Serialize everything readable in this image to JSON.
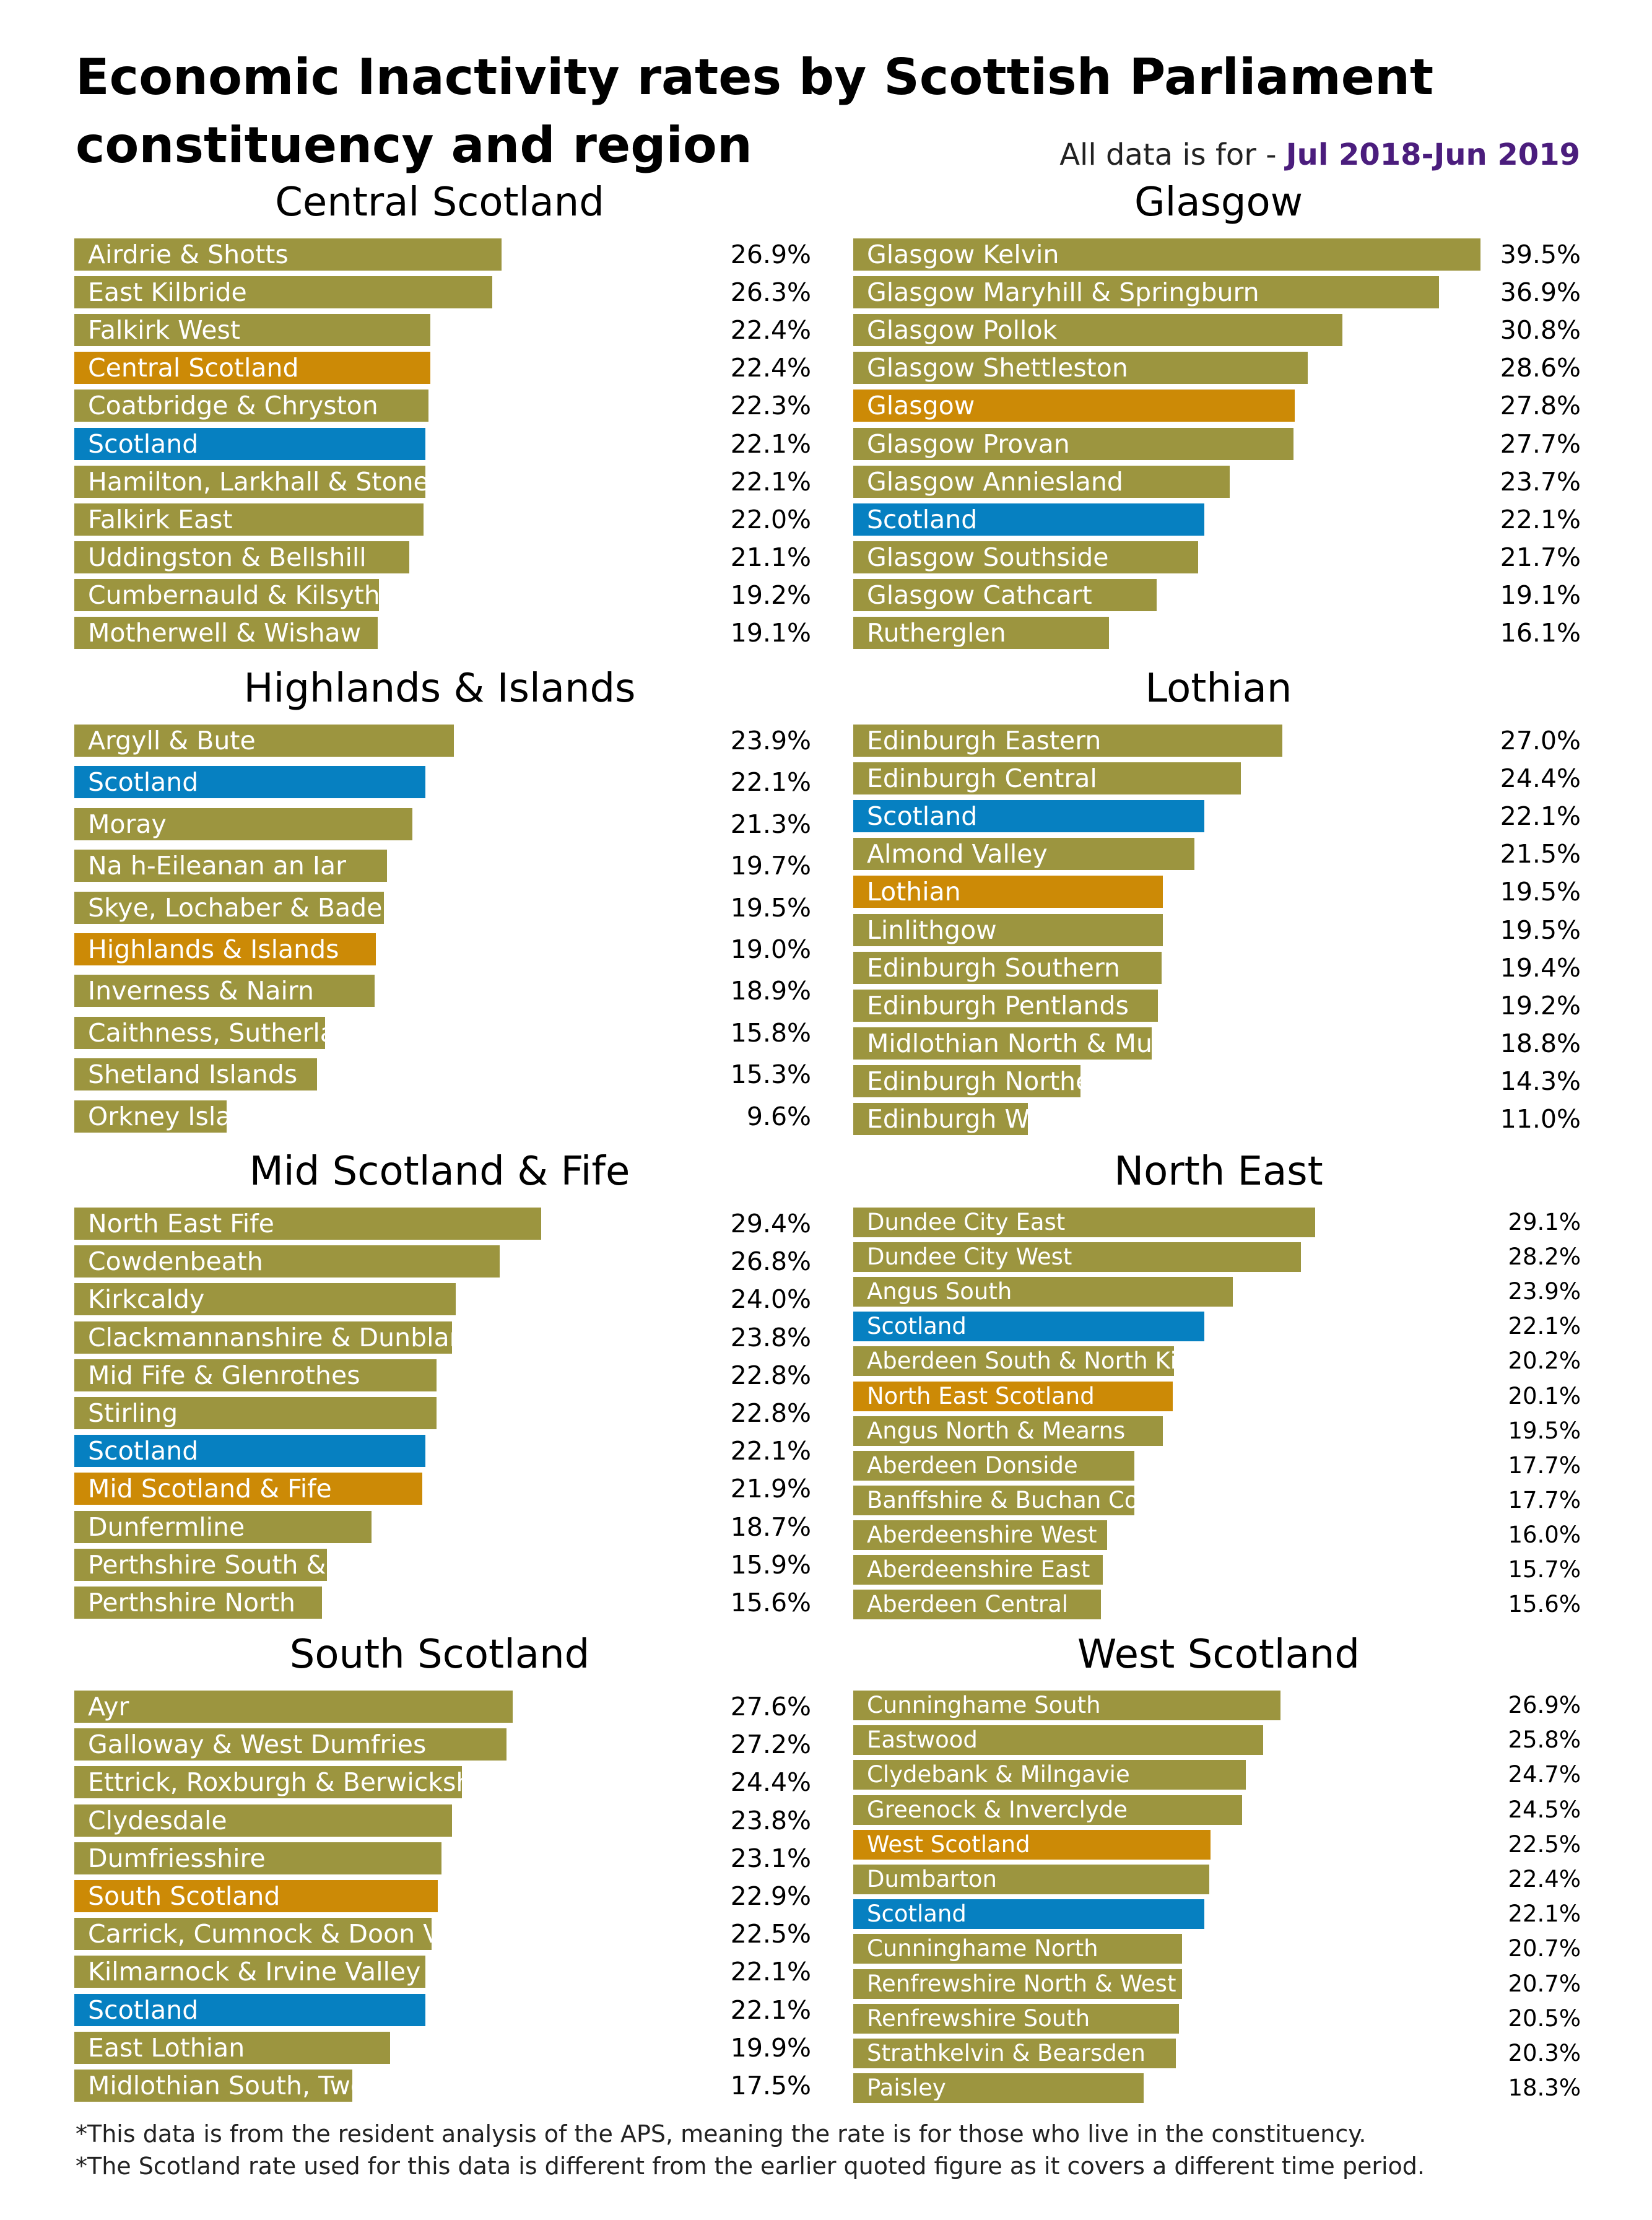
{
  "title": "Economic Inactivity rates by Scottish Parliament constituency and region",
  "period": {
    "prefix": "All data is for - ",
    "range": "Jul 2018-Jun 2019"
  },
  "colors": {
    "constituency": "#9c953f",
    "region": "#cc8a06",
    "scotland": "#0680c1",
    "label_text": "#ffffff"
  },
  "notes": [
    "*This data is from the resident analysis of the APS, meaning the rate is for those who live in the constituency.",
    "*The Scotland rate used for this data is different from the earlier quoted figure as it covers a different time period."
  ],
  "chart_data": [
    {
      "type": "bar",
      "orientation": "horizontal",
      "title": "Central Scotland",
      "unit": "%",
      "xlim": [
        0,
        40
      ],
      "categories": [
        "Airdrie & Shotts",
        "East Kilbride",
        "Falkirk West",
        "Central Scotland",
        "Coatbridge & Chryston",
        "Scotland",
        "Hamilton, Larkhall & Stonehouse",
        "Falkirk East",
        "Uddingston & Bellshill",
        "Cumbernauld & Kilsyth",
        "Motherwell & Wishaw"
      ],
      "values": [
        26.9,
        26.3,
        22.4,
        22.4,
        22.3,
        22.1,
        22.1,
        22.0,
        21.1,
        19.2,
        19.1
      ],
      "value_labels": [
        "26.9%",
        "26.3%",
        "22.4%",
        "22.4%",
        "22.3%",
        "22.1%",
        "22.1%",
        "22.0%",
        "21.1%",
        "19.2%",
        "19.1%"
      ],
      "kinds": [
        "constituency",
        "constituency",
        "constituency",
        "region",
        "constituency",
        "scotland",
        "constituency",
        "constituency",
        "constituency",
        "constituency",
        "constituency"
      ]
    },
    {
      "type": "bar",
      "orientation": "horizontal",
      "title": "Glasgow",
      "unit": "%",
      "xlim": [
        0,
        40
      ],
      "categories": [
        "Glasgow Kelvin",
        "Glasgow Maryhill & Springburn",
        "Glasgow Pollok",
        "Glasgow Shettleston",
        "Glasgow",
        "Glasgow Provan",
        "Glasgow Anniesland",
        "Scotland",
        "Glasgow Southside",
        "Glasgow Cathcart",
        "Rutherglen"
      ],
      "values": [
        39.5,
        36.9,
        30.8,
        28.6,
        27.8,
        27.7,
        23.7,
        22.1,
        21.7,
        19.1,
        16.1
      ],
      "value_labels": [
        "39.5%",
        "36.9%",
        "30.8%",
        "28.6%",
        "27.8%",
        "27.7%",
        "23.7%",
        "22.1%",
        "21.7%",
        "19.1%",
        "16.1%"
      ],
      "kinds": [
        "constituency",
        "constituency",
        "constituency",
        "constituency",
        "region",
        "constituency",
        "constituency",
        "scotland",
        "constituency",
        "constituency",
        "constituency"
      ]
    },
    {
      "type": "bar",
      "orientation": "horizontal",
      "title": "Highlands & Islands",
      "unit": "%",
      "xlim": [
        0,
        40
      ],
      "categories": [
        "Argyll & Bute",
        "Scotland",
        "Moray",
        "Na h-Eileanan an Iar",
        "Skye, Lochaber & Badenoch",
        "Highlands & Islands",
        "Inverness & Nairn",
        "Caithness, Sutherland & Ross",
        "Shetland Islands",
        "Orkney Islands"
      ],
      "values": [
        23.9,
        22.1,
        21.3,
        19.7,
        19.5,
        19.0,
        18.9,
        15.8,
        15.3,
        9.6
      ],
      "value_labels": [
        "23.9%",
        "22.1%",
        "21.3%",
        "19.7%",
        "19.5%",
        "19.0%",
        "18.9%",
        "15.8%",
        "15.3%",
        "9.6%"
      ],
      "kinds": [
        "constituency",
        "scotland",
        "constituency",
        "constituency",
        "constituency",
        "region",
        "constituency",
        "constituency",
        "constituency",
        "constituency"
      ]
    },
    {
      "type": "bar",
      "orientation": "horizontal",
      "title": "Lothian",
      "unit": "%",
      "xlim": [
        0,
        40
      ],
      "categories": [
        "Edinburgh Eastern",
        "Edinburgh Central",
        "Scotland",
        "Almond Valley",
        "Lothian",
        "Linlithgow",
        "Edinburgh Southern",
        "Edinburgh Pentlands",
        "Midlothian North & Musselburgh",
        "Edinburgh Northern & Leith",
        "Edinburgh Western"
      ],
      "values": [
        27.0,
        24.4,
        22.1,
        21.5,
        19.5,
        19.5,
        19.4,
        19.2,
        18.8,
        14.3,
        11.0
      ],
      "value_labels": [
        "27.0%",
        "24.4%",
        "22.1%",
        "21.5%",
        "19.5%",
        "19.5%",
        "19.4%",
        "19.2%",
        "18.8%",
        "14.3%",
        "11.0%"
      ],
      "kinds": [
        "constituency",
        "constituency",
        "scotland",
        "constituency",
        "region",
        "constituency",
        "constituency",
        "constituency",
        "constituency",
        "constituency",
        "constituency"
      ]
    },
    {
      "type": "bar",
      "orientation": "horizontal",
      "title": "Mid Scotland & Fife",
      "unit": "%",
      "xlim": [
        0,
        40
      ],
      "categories": [
        "North East Fife",
        "Cowdenbeath",
        "Kirkcaldy",
        "Clackmannanshire & Dunblane",
        "Mid Fife & Glenrothes",
        "Stirling",
        "Scotland",
        "Mid Scotland & Fife",
        "Dunfermline",
        "Perthshire South & Kinrossshire",
        "Perthshire North"
      ],
      "values": [
        29.4,
        26.8,
        24.0,
        23.8,
        22.8,
        22.8,
        22.1,
        21.9,
        18.7,
        15.9,
        15.6
      ],
      "value_labels": [
        "29.4%",
        "26.8%",
        "24.0%",
        "23.8%",
        "22.8%",
        "22.8%",
        "22.1%",
        "21.9%",
        "18.7%",
        "15.9%",
        "15.6%"
      ],
      "kinds": [
        "constituency",
        "constituency",
        "constituency",
        "constituency",
        "constituency",
        "constituency",
        "scotland",
        "region",
        "constituency",
        "constituency",
        "constituency"
      ]
    },
    {
      "type": "bar",
      "orientation": "horizontal",
      "title": "North East",
      "unit": "%",
      "xlim": [
        0,
        40
      ],
      "categories": [
        "Dundee City East",
        "Dundee City West",
        "Angus South",
        "Scotland",
        "Aberdeen South & North Kincardine",
        "North East Scotland",
        "Angus North & Mearns",
        "Aberdeen Donside",
        "Banffshire & Buchan Coast",
        "Aberdeenshire West",
        "Aberdeenshire East",
        "Aberdeen Central"
      ],
      "values": [
        29.1,
        28.2,
        23.9,
        22.1,
        20.2,
        20.1,
        19.5,
        17.7,
        17.7,
        16.0,
        15.7,
        15.6
      ],
      "value_labels": [
        "29.1%",
        "28.2%",
        "23.9%",
        "22.1%",
        "20.2%",
        "20.1%",
        "19.5%",
        "17.7%",
        "17.7%",
        "16.0%",
        "15.7%",
        "15.6%"
      ],
      "kinds": [
        "constituency",
        "constituency",
        "constituency",
        "scotland",
        "constituency",
        "region",
        "constituency",
        "constituency",
        "constituency",
        "constituency",
        "constituency",
        "constituency"
      ]
    },
    {
      "type": "bar",
      "orientation": "horizontal",
      "title": "South Scotland",
      "unit": "%",
      "xlim": [
        0,
        40
      ],
      "categories": [
        "Ayr",
        "Galloway & West Dumfries",
        "Ettrick, Roxburgh & Berwickshire",
        "Clydesdale",
        "Dumfriesshire",
        "South Scotland",
        "Carrick, Cumnock & Doon Valley",
        "Kilmarnock & Irvine Valley",
        "Scotland",
        "East Lothian",
        "Midlothian South, Tweeddale & Lauderdale"
      ],
      "values": [
        27.6,
        27.2,
        24.4,
        23.8,
        23.1,
        22.9,
        22.5,
        22.1,
        22.1,
        19.9,
        17.5
      ],
      "value_labels": [
        "27.6%",
        "27.2%",
        "24.4%",
        "23.8%",
        "23.1%",
        "22.9%",
        "22.5%",
        "22.1%",
        "22.1%",
        "19.9%",
        "17.5%"
      ],
      "kinds": [
        "constituency",
        "constituency",
        "constituency",
        "constituency",
        "constituency",
        "region",
        "constituency",
        "constituency",
        "scotland",
        "constituency",
        "constituency"
      ]
    },
    {
      "type": "bar",
      "orientation": "horizontal",
      "title": "West Scotland",
      "unit": "%",
      "xlim": [
        0,
        40
      ],
      "categories": [
        "Cunninghame South",
        "Eastwood",
        "Clydebank & Milngavie",
        "Greenock & Inverclyde",
        "West Scotland",
        "Dumbarton",
        "Scotland",
        "Cunninghame North",
        "Renfrewshire North & West",
        "Renfrewshire South",
        "Strathkelvin & Bearsden",
        "Paisley"
      ],
      "values": [
        26.9,
        25.8,
        24.7,
        24.5,
        22.5,
        22.4,
        22.1,
        20.7,
        20.7,
        20.5,
        20.3,
        18.3
      ],
      "value_labels": [
        "26.9%",
        "25.8%",
        "24.7%",
        "24.5%",
        "22.5%",
        "22.4%",
        "22.1%",
        "20.7%",
        "20.7%",
        "20.5%",
        "20.3%",
        "18.3%"
      ],
      "kinds": [
        "constituency",
        "constituency",
        "constituency",
        "constituency",
        "region",
        "constituency",
        "scotland",
        "constituency",
        "constituency",
        "constituency",
        "constituency",
        "constituency"
      ]
    }
  ]
}
